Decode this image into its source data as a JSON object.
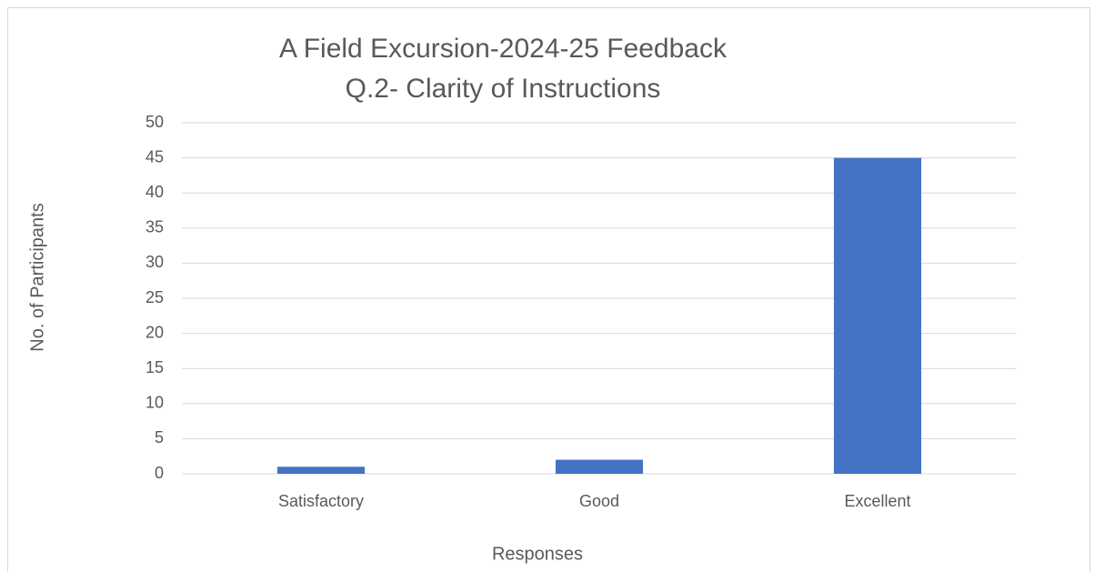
{
  "chart_data": {
    "type": "bar",
    "title": [
      "A Field Excursion-2024-25 Feedback",
      "Q.2- Clarity of Instructions"
    ],
    "x_label": "Responses",
    "y_label": "No. of Participants",
    "categories": [
      "Satisfactory",
      "Good",
      "Excellent"
    ],
    "values": [
      1,
      2,
      45
    ],
    "color": "#4472c4",
    "ylim": [
      0,
      50
    ],
    "yticks": [
      0,
      5,
      10,
      15,
      20,
      25,
      30,
      35,
      40,
      45,
      50
    ],
    "grid": true
  }
}
